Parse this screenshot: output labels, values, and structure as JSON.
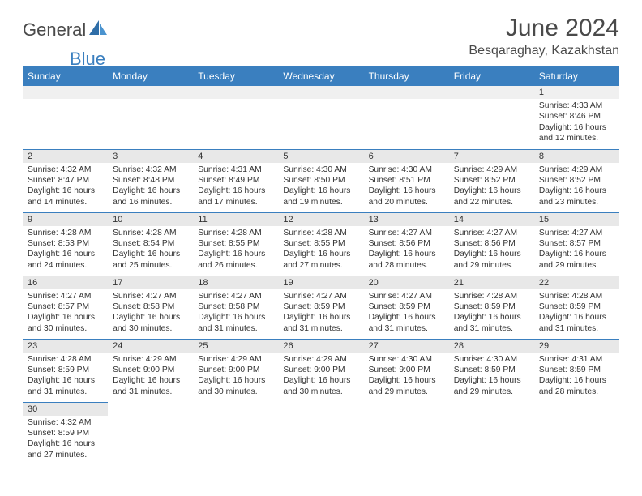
{
  "brand": {
    "general": "General",
    "blue": "Blue"
  },
  "title": "June 2024",
  "location": "Besqaraghay, Kazakhstan",
  "colors": {
    "header_bg": "#3a7fbf",
    "header_text": "#ffffff",
    "daynum_bg": "#e8e8e8",
    "border": "#3a7fbf",
    "text": "#333333",
    "logo_blue": "#3a7fbf",
    "logo_gray": "#4a4a4a"
  },
  "day_labels": [
    "Sunday",
    "Monday",
    "Tuesday",
    "Wednesday",
    "Thursday",
    "Friday",
    "Saturday"
  ],
  "weeks": [
    [
      null,
      null,
      null,
      null,
      null,
      null,
      {
        "n": "1",
        "sunrise": "Sunrise: 4:33 AM",
        "sunset": "Sunset: 8:46 PM",
        "daylight": "Daylight: 16 hours and 12 minutes."
      }
    ],
    [
      {
        "n": "2",
        "sunrise": "Sunrise: 4:32 AM",
        "sunset": "Sunset: 8:47 PM",
        "daylight": "Daylight: 16 hours and 14 minutes."
      },
      {
        "n": "3",
        "sunrise": "Sunrise: 4:32 AM",
        "sunset": "Sunset: 8:48 PM",
        "daylight": "Daylight: 16 hours and 16 minutes."
      },
      {
        "n": "4",
        "sunrise": "Sunrise: 4:31 AM",
        "sunset": "Sunset: 8:49 PM",
        "daylight": "Daylight: 16 hours and 17 minutes."
      },
      {
        "n": "5",
        "sunrise": "Sunrise: 4:30 AM",
        "sunset": "Sunset: 8:50 PM",
        "daylight": "Daylight: 16 hours and 19 minutes."
      },
      {
        "n": "6",
        "sunrise": "Sunrise: 4:30 AM",
        "sunset": "Sunset: 8:51 PM",
        "daylight": "Daylight: 16 hours and 20 minutes."
      },
      {
        "n": "7",
        "sunrise": "Sunrise: 4:29 AM",
        "sunset": "Sunset: 8:52 PM",
        "daylight": "Daylight: 16 hours and 22 minutes."
      },
      {
        "n": "8",
        "sunrise": "Sunrise: 4:29 AM",
        "sunset": "Sunset: 8:52 PM",
        "daylight": "Daylight: 16 hours and 23 minutes."
      }
    ],
    [
      {
        "n": "9",
        "sunrise": "Sunrise: 4:28 AM",
        "sunset": "Sunset: 8:53 PM",
        "daylight": "Daylight: 16 hours and 24 minutes."
      },
      {
        "n": "10",
        "sunrise": "Sunrise: 4:28 AM",
        "sunset": "Sunset: 8:54 PM",
        "daylight": "Daylight: 16 hours and 25 minutes."
      },
      {
        "n": "11",
        "sunrise": "Sunrise: 4:28 AM",
        "sunset": "Sunset: 8:55 PM",
        "daylight": "Daylight: 16 hours and 26 minutes."
      },
      {
        "n": "12",
        "sunrise": "Sunrise: 4:28 AM",
        "sunset": "Sunset: 8:55 PM",
        "daylight": "Daylight: 16 hours and 27 minutes."
      },
      {
        "n": "13",
        "sunrise": "Sunrise: 4:27 AM",
        "sunset": "Sunset: 8:56 PM",
        "daylight": "Daylight: 16 hours and 28 minutes."
      },
      {
        "n": "14",
        "sunrise": "Sunrise: 4:27 AM",
        "sunset": "Sunset: 8:56 PM",
        "daylight": "Daylight: 16 hours and 29 minutes."
      },
      {
        "n": "15",
        "sunrise": "Sunrise: 4:27 AM",
        "sunset": "Sunset: 8:57 PM",
        "daylight": "Daylight: 16 hours and 29 minutes."
      }
    ],
    [
      {
        "n": "16",
        "sunrise": "Sunrise: 4:27 AM",
        "sunset": "Sunset: 8:57 PM",
        "daylight": "Daylight: 16 hours and 30 minutes."
      },
      {
        "n": "17",
        "sunrise": "Sunrise: 4:27 AM",
        "sunset": "Sunset: 8:58 PM",
        "daylight": "Daylight: 16 hours and 30 minutes."
      },
      {
        "n": "18",
        "sunrise": "Sunrise: 4:27 AM",
        "sunset": "Sunset: 8:58 PM",
        "daylight": "Daylight: 16 hours and 31 minutes."
      },
      {
        "n": "19",
        "sunrise": "Sunrise: 4:27 AM",
        "sunset": "Sunset: 8:59 PM",
        "daylight": "Daylight: 16 hours and 31 minutes."
      },
      {
        "n": "20",
        "sunrise": "Sunrise: 4:27 AM",
        "sunset": "Sunset: 8:59 PM",
        "daylight": "Daylight: 16 hours and 31 minutes."
      },
      {
        "n": "21",
        "sunrise": "Sunrise: 4:28 AM",
        "sunset": "Sunset: 8:59 PM",
        "daylight": "Daylight: 16 hours and 31 minutes."
      },
      {
        "n": "22",
        "sunrise": "Sunrise: 4:28 AM",
        "sunset": "Sunset: 8:59 PM",
        "daylight": "Daylight: 16 hours and 31 minutes."
      }
    ],
    [
      {
        "n": "23",
        "sunrise": "Sunrise: 4:28 AM",
        "sunset": "Sunset: 8:59 PM",
        "daylight": "Daylight: 16 hours and 31 minutes."
      },
      {
        "n": "24",
        "sunrise": "Sunrise: 4:29 AM",
        "sunset": "Sunset: 9:00 PM",
        "daylight": "Daylight: 16 hours and 31 minutes."
      },
      {
        "n": "25",
        "sunrise": "Sunrise: 4:29 AM",
        "sunset": "Sunset: 9:00 PM",
        "daylight": "Daylight: 16 hours and 30 minutes."
      },
      {
        "n": "26",
        "sunrise": "Sunrise: 4:29 AM",
        "sunset": "Sunset: 9:00 PM",
        "daylight": "Daylight: 16 hours and 30 minutes."
      },
      {
        "n": "27",
        "sunrise": "Sunrise: 4:30 AM",
        "sunset": "Sunset: 9:00 PM",
        "daylight": "Daylight: 16 hours and 29 minutes."
      },
      {
        "n": "28",
        "sunrise": "Sunrise: 4:30 AM",
        "sunset": "Sunset: 8:59 PM",
        "daylight": "Daylight: 16 hours and 29 minutes."
      },
      {
        "n": "29",
        "sunrise": "Sunrise: 4:31 AM",
        "sunset": "Sunset: 8:59 PM",
        "daylight": "Daylight: 16 hours and 28 minutes."
      }
    ],
    [
      {
        "n": "30",
        "sunrise": "Sunrise: 4:32 AM",
        "sunset": "Sunset: 8:59 PM",
        "daylight": "Daylight: 16 hours and 27 minutes."
      },
      null,
      null,
      null,
      null,
      null,
      null
    ]
  ]
}
